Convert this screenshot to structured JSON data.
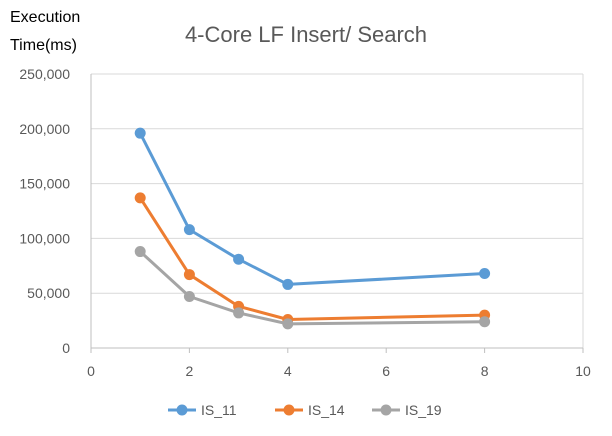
{
  "chart_data": {
    "type": "line",
    "title": "4-Core LF Insert/ Search",
    "ylabel_lines": [
      "Execution",
      "Time(ms)"
    ],
    "xlabel": "",
    "xlim": [
      0,
      10
    ],
    "ylim": [
      0,
      250000
    ],
    "x_ticks": [
      0,
      2,
      4,
      6,
      8,
      10
    ],
    "y_ticks": [
      0,
      50000,
      100000,
      150000,
      200000,
      250000
    ],
    "y_tick_labels": [
      "0",
      "50,000",
      "100,000",
      "150,000",
      "200,000",
      "250,000"
    ],
    "grid": "horizontal",
    "legend_position": "bottom",
    "x": [
      1,
      2,
      3,
      4,
      8
    ],
    "series": [
      {
        "name": "IS_11",
        "color": "#5B9BD5",
        "values": [
          196000,
          108000,
          81000,
          58000,
          68000
        ]
      },
      {
        "name": "IS_14",
        "color": "#ED7D31",
        "values": [
          137000,
          67000,
          38000,
          26000,
          30000
        ]
      },
      {
        "name": "IS_19",
        "color": "#A5A5A5",
        "values": [
          88000,
          47000,
          32000,
          22000,
          24000
        ]
      }
    ]
  }
}
